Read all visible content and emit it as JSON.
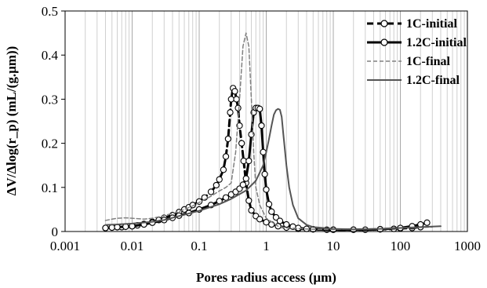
{
  "chart_data": {
    "type": "line",
    "xlabel": "Pores radius access (µm)",
    "ylabel": "ΔV/Δlog(r_p) (mL/(g.µm))",
    "x_scale": "log",
    "xlim": [
      0.001,
      1000
    ],
    "ylim": [
      0,
      0.5
    ],
    "x_ticks": [
      "0.001",
      "0.01",
      "0.1",
      "1",
      "10",
      "100",
      "1000"
    ],
    "y_ticks": [
      "0",
      "0.1",
      "0.2",
      "0.3",
      "0.4",
      "0.5"
    ],
    "grid": {
      "x_major": true,
      "x_minor": true,
      "y": false
    },
    "legend_position": "top-right",
    "series": [
      {
        "name": "1C-initial",
        "style": "dashed-thick",
        "color": "#000000",
        "markers": true,
        "points": [
          [
            0.004,
            0.008
          ],
          [
            0.005,
            0.009
          ],
          [
            0.006,
            0.01
          ],
          [
            0.007,
            0.01
          ],
          [
            0.008,
            0.011
          ],
          [
            0.01,
            0.012
          ],
          [
            0.012,
            0.014
          ],
          [
            0.015,
            0.017
          ],
          [
            0.02,
            0.022
          ],
          [
            0.025,
            0.026
          ],
          [
            0.03,
            0.031
          ],
          [
            0.04,
            0.037
          ],
          [
            0.05,
            0.044
          ],
          [
            0.06,
            0.05
          ],
          [
            0.07,
            0.055
          ],
          [
            0.08,
            0.06
          ],
          [
            0.1,
            0.068
          ],
          [
            0.12,
            0.077
          ],
          [
            0.15,
            0.09
          ],
          [
            0.18,
            0.105
          ],
          [
            0.2,
            0.118
          ],
          [
            0.23,
            0.14
          ],
          [
            0.25,
            0.17
          ],
          [
            0.27,
            0.21
          ],
          [
            0.29,
            0.27
          ],
          [
            0.3,
            0.3
          ],
          [
            0.32,
            0.325
          ],
          [
            0.34,
            0.318
          ],
          [
            0.36,
            0.3
          ],
          [
            0.38,
            0.28
          ],
          [
            0.4,
            0.24
          ],
          [
            0.43,
            0.2
          ],
          [
            0.46,
            0.16
          ],
          [
            0.5,
            0.11
          ],
          [
            0.55,
            0.07
          ],
          [
            0.6,
            0.048
          ],
          [
            0.7,
            0.035
          ],
          [
            0.8,
            0.028
          ],
          [
            1,
            0.021
          ],
          [
            1.2,
            0.016
          ],
          [
            1.5,
            0.012
          ],
          [
            2,
            0.009
          ],
          [
            3,
            0.006
          ],
          [
            5,
            0.005
          ],
          [
            8,
            0.004
          ],
          [
            10,
            0.004
          ],
          [
            20,
            0.004
          ],
          [
            30,
            0.004
          ],
          [
            50,
            0.005
          ],
          [
            80,
            0.006
          ],
          [
            100,
            0.007
          ],
          [
            150,
            0.008
          ],
          [
            200,
            0.01
          ]
        ]
      },
      {
        "name": "1.2C-initial",
        "style": "solid-thick",
        "color": "#000000",
        "markers": true,
        "points": [
          [
            0.004,
            0.008
          ],
          [
            0.005,
            0.009
          ],
          [
            0.006,
            0.01
          ],
          [
            0.008,
            0.011
          ],
          [
            0.01,
            0.012
          ],
          [
            0.015,
            0.016
          ],
          [
            0.02,
            0.02
          ],
          [
            0.03,
            0.026
          ],
          [
            0.04,
            0.031
          ],
          [
            0.05,
            0.036
          ],
          [
            0.07,
            0.042
          ],
          [
            0.1,
            0.05
          ],
          [
            0.15,
            0.06
          ],
          [
            0.2,
            0.069
          ],
          [
            0.25,
            0.077
          ],
          [
            0.3,
            0.084
          ],
          [
            0.35,
            0.09
          ],
          [
            0.4,
            0.097
          ],
          [
            0.45,
            0.106
          ],
          [
            0.5,
            0.12
          ],
          [
            0.55,
            0.16
          ],
          [
            0.6,
            0.22
          ],
          [
            0.65,
            0.27
          ],
          [
            0.7,
            0.28
          ],
          [
            0.75,
            0.28
          ],
          [
            0.8,
            0.278
          ],
          [
            0.85,
            0.24
          ],
          [
            0.9,
            0.18
          ],
          [
            0.95,
            0.13
          ],
          [
            1,
            0.095
          ],
          [
            1.1,
            0.062
          ],
          [
            1.2,
            0.045
          ],
          [
            1.4,
            0.032
          ],
          [
            1.6,
            0.024
          ],
          [
            2,
            0.016
          ],
          [
            2.5,
            0.011
          ],
          [
            3,
            0.008
          ],
          [
            4,
            0.006
          ],
          [
            5,
            0.005
          ],
          [
            10,
            0.004
          ],
          [
            20,
            0.004
          ],
          [
            50,
            0.005
          ],
          [
            100,
            0.008
          ],
          [
            150,
            0.012
          ],
          [
            200,
            0.016
          ],
          [
            250,
            0.02
          ]
        ]
      },
      {
        "name": "1C-final",
        "style": "dashed-thin",
        "color": "#808080",
        "markers": false,
        "points": [
          [
            0.004,
            0.025
          ],
          [
            0.005,
            0.028
          ],
          [
            0.006,
            0.03
          ],
          [
            0.008,
            0.031
          ],
          [
            0.01,
            0.03
          ],
          [
            0.015,
            0.028
          ],
          [
            0.02,
            0.03
          ],
          [
            0.03,
            0.036
          ],
          [
            0.05,
            0.045
          ],
          [
            0.08,
            0.058
          ],
          [
            0.1,
            0.066
          ],
          [
            0.15,
            0.08
          ],
          [
            0.2,
            0.092
          ],
          [
            0.25,
            0.1
          ],
          [
            0.3,
            0.11
          ],
          [
            0.35,
            0.18
          ],
          [
            0.4,
            0.3
          ],
          [
            0.45,
            0.42
          ],
          [
            0.5,
            0.45
          ],
          [
            0.55,
            0.42
          ],
          [
            0.6,
            0.3
          ],
          [
            0.65,
            0.18
          ],
          [
            0.7,
            0.1
          ],
          [
            0.8,
            0.06
          ],
          [
            1,
            0.03
          ],
          [
            1.5,
            0.012
          ],
          [
            2,
            0.008
          ],
          [
            5,
            0.005
          ],
          [
            10,
            0.005
          ],
          [
            30,
            0.005
          ],
          [
            100,
            0.008
          ],
          [
            300,
            0.01
          ]
        ]
      },
      {
        "name": "1.2C-final",
        "style": "solid-thin",
        "color": "#555555",
        "markers": false,
        "points": [
          [
            0.004,
            0.015
          ],
          [
            0.006,
            0.016
          ],
          [
            0.01,
            0.018
          ],
          [
            0.02,
            0.022
          ],
          [
            0.03,
            0.026
          ],
          [
            0.05,
            0.035
          ],
          [
            0.1,
            0.047
          ],
          [
            0.2,
            0.062
          ],
          [
            0.3,
            0.074
          ],
          [
            0.5,
            0.093
          ],
          [
            0.7,
            0.115
          ],
          [
            0.9,
            0.15
          ],
          [
            1,
            0.18
          ],
          [
            1.1,
            0.21
          ],
          [
            1.2,
            0.24
          ],
          [
            1.3,
            0.265
          ],
          [
            1.4,
            0.275
          ],
          [
            1.5,
            0.278
          ],
          [
            1.6,
            0.276
          ],
          [
            1.7,
            0.26
          ],
          [
            1.8,
            0.22
          ],
          [
            2,
            0.15
          ],
          [
            2.2,
            0.1
          ],
          [
            2.5,
            0.06
          ],
          [
            3,
            0.03
          ],
          [
            4,
            0.015
          ],
          [
            5,
            0.01
          ],
          [
            10,
            0.006
          ],
          [
            20,
            0.005
          ],
          [
            50,
            0.006
          ],
          [
            100,
            0.008
          ],
          [
            200,
            0.01
          ],
          [
            400,
            0.012
          ]
        ]
      }
    ]
  }
}
